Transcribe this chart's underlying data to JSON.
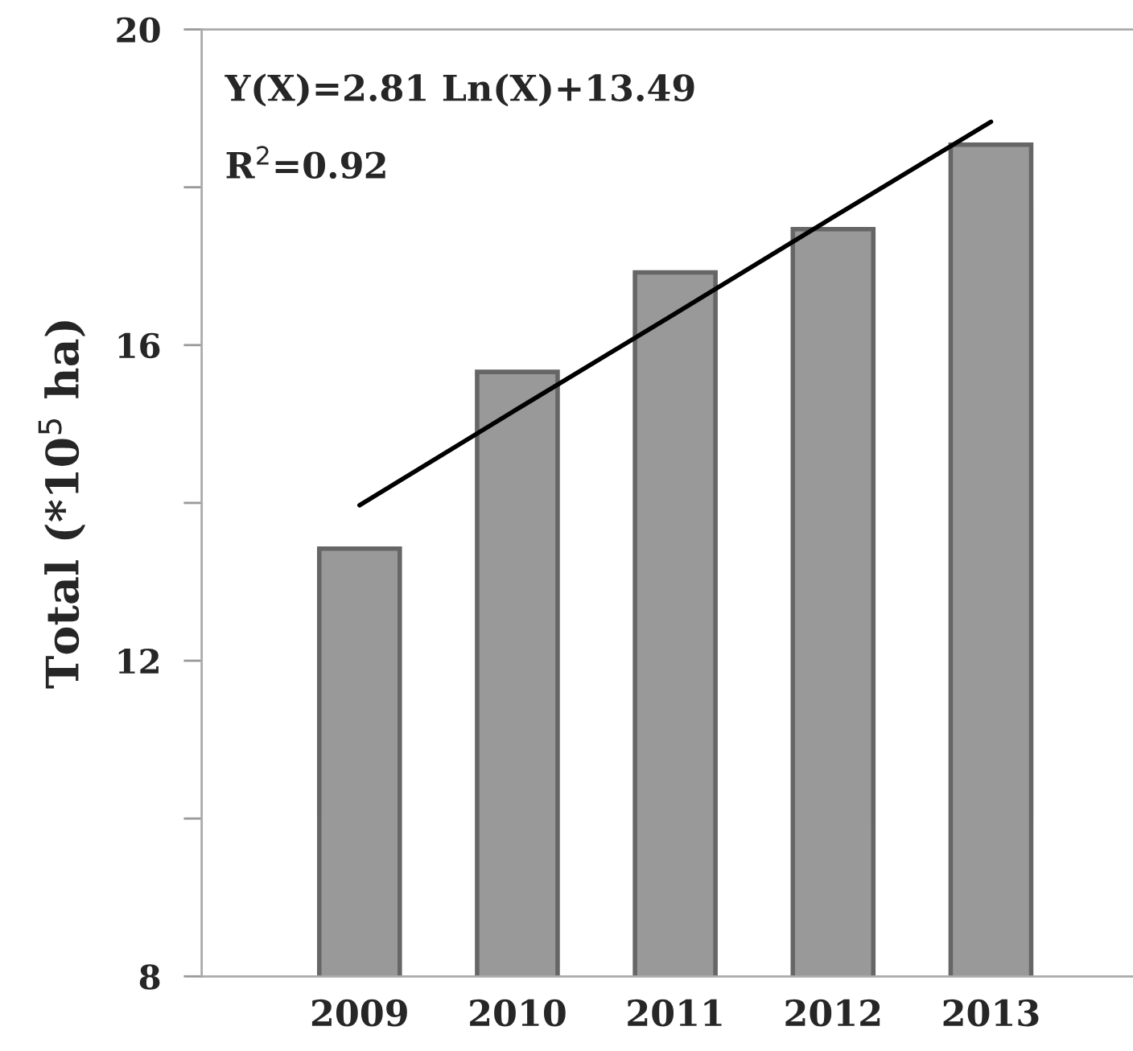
{
  "chart_data": {
    "type": "bar",
    "ylabel": "Total (*10$^{5}$ ha)",
    "categories": [
      "2009",
      "2010",
      "2011",
      "2012",
      "2013"
    ],
    "series": [
      {
        "color": "#999999",
        "values": [
          13.42,
          15.66,
          16.92,
          17.47,
          18.54
        ]
      },
      {
        "type": "line",
        "color": "#000000",
        "values": [
          13.97,
          15.19,
          16.4,
          17.62,
          18.83
        ]
      }
    ],
    "ylim": [
      8,
      20
    ],
    "yticks": [
      8,
      {
        "value": 10,
        "label": null
      },
      12,
      {
        "value": 14,
        "label": null
      },
      16,
      {
        "value": 18,
        "label": null
      },
      20
    ],
    "annotations": [
      "Y(X)=2.81 Ln(X)+13.49",
      "R$^{2}$=0.92"
    ],
    "grid": false,
    "legend": false
  }
}
